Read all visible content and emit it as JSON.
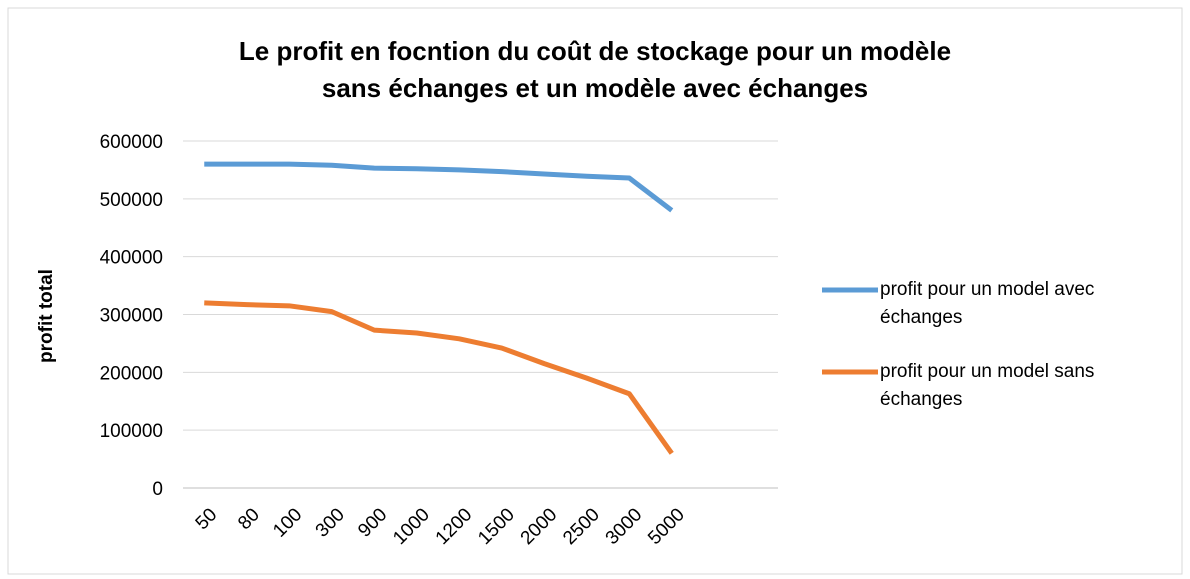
{
  "chart_data": {
    "type": "line",
    "title": "Le profit en focntion du coût  de stockage pour un modèle\nsans échanges et un modèle avec échanges",
    "y_label": "profit total",
    "categories": [
      "50",
      "80",
      "100",
      "300",
      "900",
      "1000",
      "1200",
      "1500",
      "2000",
      "2500",
      "3000",
      "5000",
      null,
      null
    ],
    "series": [
      {
        "name": "profit pour un model  avec échanges",
        "color": "#5b9bd5",
        "values": [
          560000,
          560000,
          560000,
          558000,
          553000,
          552000,
          550000,
          547000,
          543000,
          539000,
          536000,
          480000,
          null,
          null
        ]
      },
      {
        "name": "profit pour un model sans échanges",
        "color": "#ed7d31",
        "values": [
          320000,
          317000,
          315000,
          305000,
          273000,
          268000,
          258000,
          242000,
          215000,
          190000,
          163000,
          60000,
          null,
          null
        ]
      }
    ],
    "ylim": [
      0,
      600000
    ],
    "yticks": [
      0,
      100000,
      200000,
      300000,
      400000,
      500000,
      600000
    ],
    "grid": true,
    "legend": "right"
  }
}
